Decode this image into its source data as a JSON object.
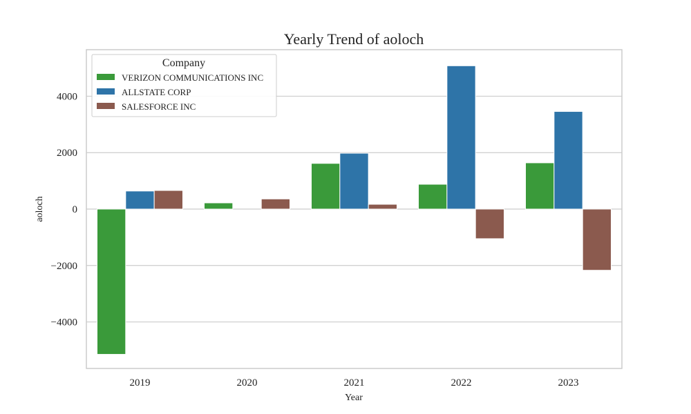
{
  "chart_data": {
    "type": "bar",
    "title": "Yearly Trend of aoloch",
    "xlabel": "Year",
    "ylabel": "aoloch",
    "categories": [
      "2019",
      "2020",
      "2021",
      "2022",
      "2023"
    ],
    "series": [
      {
        "name": "VERIZON COMMUNICATIONS INC",
        "color": "#3a9a3a",
        "values": [
          -5150,
          220,
          1620,
          880,
          1640
        ]
      },
      {
        "name": "ALLSTATE CORP",
        "color": "#2e74a8",
        "values": [
          640,
          0,
          1980,
          5080,
          3460
        ]
      },
      {
        "name": "SALESFORCE INC",
        "color": "#8b5a4e",
        "values": [
          660,
          360,
          170,
          -1050,
          -2170
        ]
      }
    ],
    "ylim": [
      -5650,
      5650
    ],
    "yticks": [
      -4000,
      -2000,
      0,
      2000,
      4000
    ],
    "ytick_labels": [
      "−4000",
      "−2000",
      "0",
      "2000",
      "4000"
    ],
    "grid": true,
    "legend": {
      "title": "Company",
      "placement": "top-left"
    }
  }
}
